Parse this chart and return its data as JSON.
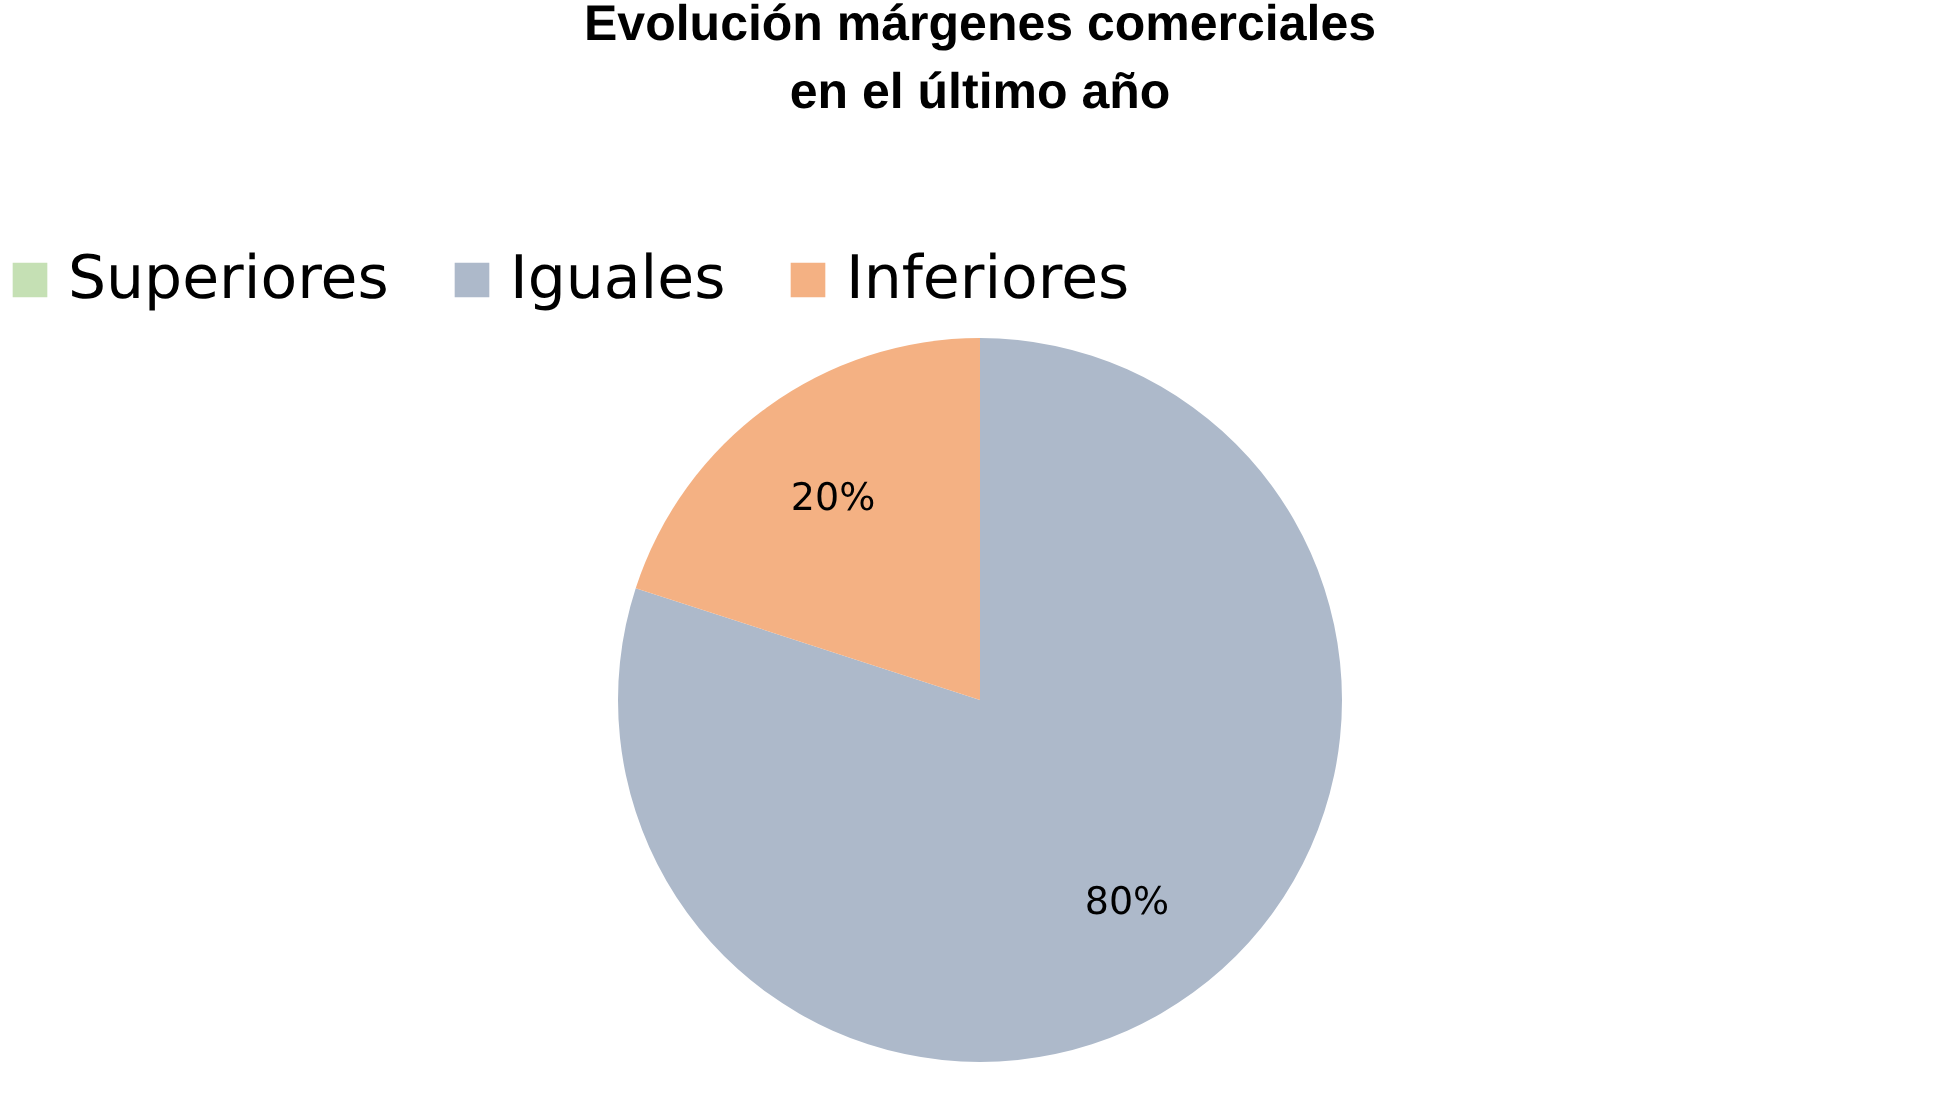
{
  "chart_data": {
    "type": "pie",
    "title": "Evolución márgenes comerciales\nen el último año",
    "categories": [
      "Superiores",
      "Iguales",
      "Inferiores"
    ],
    "values": [
      0,
      80,
      20
    ],
    "colors": [
      "#c5e0b4",
      "#adb9ca",
      "#f4b183"
    ],
    "value_labels": [
      null,
      "80%",
      "20%"
    ],
    "legend": "top"
  }
}
